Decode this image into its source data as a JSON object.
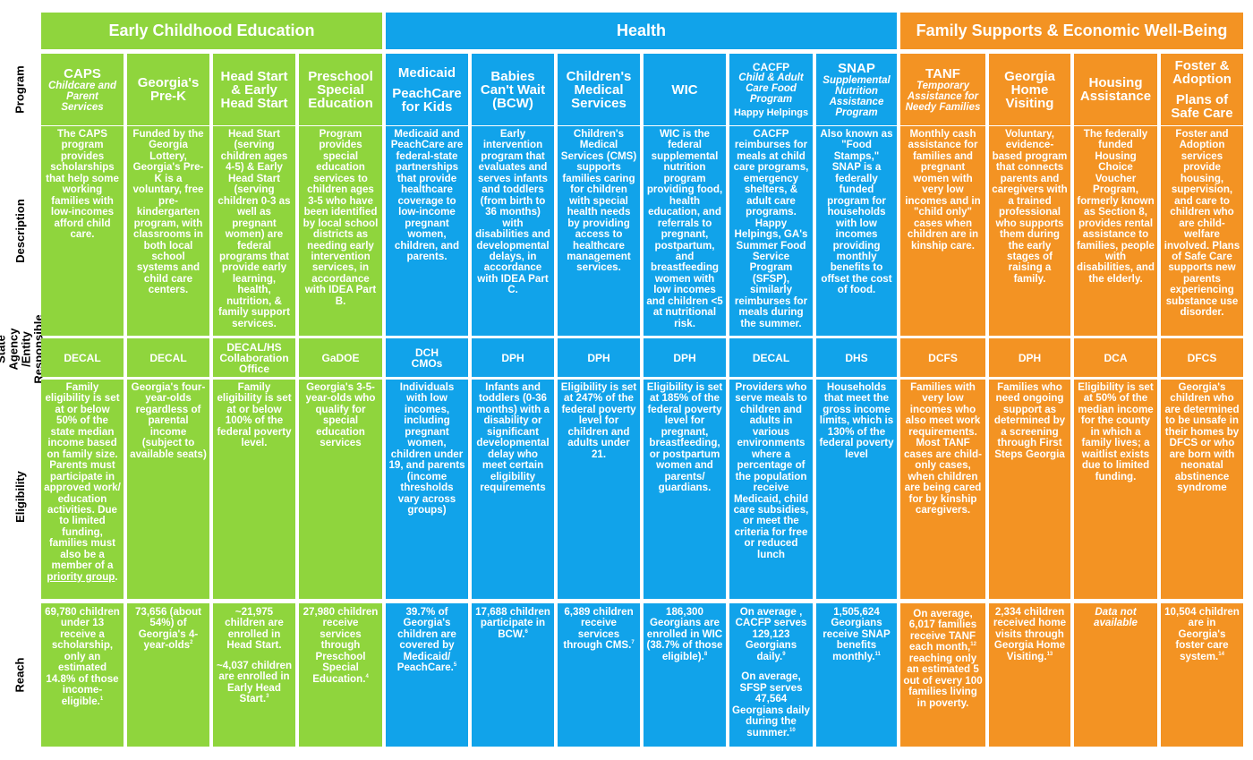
{
  "row_labels": {
    "program": "Program",
    "description": "Description",
    "agency": "State Agency /Entity Responsible",
    "eligibility": "Eligibility",
    "reach": "Reach"
  },
  "categories": [
    {
      "key": "ece",
      "label": "Early Childhood Education",
      "color": "#8fd53d"
    },
    {
      "key": "health",
      "label": "Health",
      "color": "#11a3ea"
    },
    {
      "key": "family",
      "label": "Family Supports & Economic Well-Being",
      "color": "#f39323"
    }
  ],
  "programs": [
    {
      "title": "CAPS",
      "subtitle": "Childcare and Parent Services",
      "description": "The CAPS program provides scholarships that help some working families with low-incomes afford child care.",
      "agency": "DECAL",
      "eligibility": "Family eligibility is set at or below 50% of the state median income based on family size. Parents must participate in approved work/ education activities. Due to limited funding, families must also be a member of a",
      "eligibility_link": "priority group",
      "eligibility_end": ".",
      "reach": "69,780 children under 13 receive a scholarship, only an estimated 14.8% of those income-eligible.",
      "reach_sup": "1"
    },
    {
      "title": "Georgia's Pre-K",
      "description": "Funded by the Georgia Lottery, Georgia's Pre-K is a voluntary, free pre-kindergarten program, with classrooms in both local school systems and child care centers.",
      "agency": "DECAL",
      "eligibility": "Georgia's four-year-olds regardless of parental income (subject to available seats)",
      "reach": "73,656 (about 54%) of Georgia's 4-year-olds",
      "reach_sup": "2"
    },
    {
      "title": "Head Start & Early Head Start",
      "description": "Head Start (serving children ages 4-5) & Early Head Start (serving children 0-3 as well as pregnant women) are federal programs that provide early learning, health, nutrition, & family support services.",
      "agency": "DECAL/HS Collaboration Office",
      "eligibility": "Family eligibility is set at or below 100% of the federal poverty level.",
      "reach": "~21,975 children are enrolled in Head Start.",
      "reach_2": "~4,037 children are enrolled in Early Head Start.",
      "reach_sup": "3"
    },
    {
      "title": "Preschool Special Education",
      "description": "Program provides special education services to children ages 3-5 who have been identified by local school districts as needing early intervention services, in accordance with IDEA Part B.",
      "agency": "GaDOE",
      "eligibility": "Georgia's 3-5-year-olds who qualify for special education services",
      "reach": "27,980 children receive services through Preschool Special Education.",
      "reach_sup": "4"
    },
    {
      "title": "Medicaid",
      "title2": "PeachCare for Kids",
      "description": "Medicaid and PeachCare are federal-state partnerships that provide healthcare coverage to low-income pregnant women, children, and parents.",
      "agency": "DCH CMOs",
      "eligibility": "Individuals with low incomes, including pregnant women, children under 19, and parents (income thresholds vary across groups)",
      "reach": "39.7% of Georgia's children are covered by Medicaid/ PeachCare.",
      "reach_sup": "5"
    },
    {
      "title": "Babies Can't Wait (BCW)",
      "description": "Early intervention program that evaluates and serves infants and toddlers (from birth to 36 months) with disabilities and developmental delays, in accordance with IDEA Part C.",
      "agency": "DPH",
      "eligibility": "Infants and toddlers (0-36 months) with a disability or significant developmental delay who meet certain eligibility requirements",
      "reach": "17,688 children participate in BCW.",
      "reach_sup": "6"
    },
    {
      "title": "Children's Medical Services",
      "description": "Children's Medical Services (CMS) supports families caring for children with special health needs by providing access to healthcare management services.",
      "agency": "DPH",
      "eligibility": "Eligibility is set at 247% of the federal poverty level for children and adults under 21.",
      "reach": "6,389 children receive services through CMS.",
      "reach_sup": "7"
    },
    {
      "title": "WIC",
      "description": "WIC is the federal supplemental nutrition program providing food, health education, and referrals to pregnant, postpartum, and breastfeeding women with low incomes and children <5 at nutritional risk.",
      "agency": "DPH",
      "eligibility": "Eligibility is set at 185% of the federal poverty level for pregnant, breastfeeding, or postpartum women and parents/ guardians.",
      "reach": "186,300 Georgians are enrolled in WIC (38.7% of those eligible).",
      "reach_sup": "8"
    },
    {
      "title": "CACFP",
      "subtitle": "Child & Adult Care Food Program",
      "extra": "Happy Helpings",
      "description": "CACFP reimburses for meals at child care programs, emergency shelters, & adult care programs. Happy Helpings, GA's Summer Food Service Program (SFSP), similarly reimburses for meals during the summer.",
      "agency": "DECAL",
      "eligibility": "Providers who serve meals to children and adults in various environments where a percentage of the population receive Medicaid, child care subsidies, or meet the criteria for free or reduced lunch",
      "reach": "On average , CACFP serves 129,123 Georgians daily.",
      "reach_sup": "9",
      "reach_2": "On average, SFSP serves 47,564 Georgians daily during the summer.",
      "reach_sup_2": "10"
    },
    {
      "title": "SNAP",
      "subtitle": "Supplemental Nutrition Assistance Program",
      "description": "Also known as \"Food Stamps,\" SNAP is a federally funded program for households with low incomes providing monthly benefits to offset the cost of food.",
      "agency": "DHS",
      "eligibility": "Households that meet the gross income limits, which is 130% of the federal poverty level",
      "reach": "1,505,624 Georgians receive SNAP benefits monthly.",
      "reach_sup": "11"
    },
    {
      "title": "TANF",
      "subtitle": "Temporary Assistance for Needy Families",
      "description": "Monthly cash assistance for families and pregnant women with very low incomes and in \"child only\" cases when children are in kinship care.",
      "agency": "DCFS",
      "eligibility": "Families with very low incomes who also meet work requirements. Most TANF cases are child-only cases, when children are being cared for by kinship caregivers.",
      "reach": "On average, 6,017 families receive TANF each month,",
      "reach_sup": "12",
      "reach_end": " reaching only an estimated 5 out of every 100 families living in poverty."
    },
    {
      "title": "Georgia Home Visiting",
      "description": "Voluntary, evidence-based program that connects parents and caregivers with a trained professional who supports them during the early stages of raising a family.",
      "agency": "DPH",
      "eligibility": "Families who need ongoing support as determined by a screening through First Steps Georgia",
      "reach": "2,334 children received home visits through Georgia Home Visiting.",
      "reach_sup": "13"
    },
    {
      "title": "Housing Assistance",
      "description": "The federally funded Housing Choice Voucher Program, formerly known as Section 8, provides rental assistance to families, people with disabilities, and the elderly.",
      "agency": "DCA",
      "eligibility": "Eligibility is set at 50% of the median income for the county in which a family lives; a waitlist exists due to limited funding.",
      "reach": "Data not available"
    },
    {
      "title": "Foster & Adoption",
      "title2": "Plans of Safe Care",
      "description": "Foster and Adoption services provide housing, supervision, and care to children who are child-welfare involved. Plans of Safe Care supports new parents experiencing substance use disorder.",
      "agency": "DFCS",
      "eligibility": "Georgia's children who are determined to be unsafe in their homes by DFCS or who are born with neonatal abstinence syndrome",
      "reach": "10,504 children are in Georgia's foster care system.",
      "reach_sup": "14"
    }
  ]
}
